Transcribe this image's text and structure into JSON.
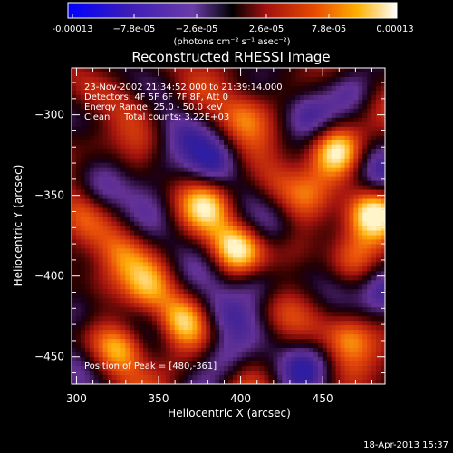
{
  "chart_data": {
    "type": "heatmap",
    "title": "Reconstructed RHESSI Image",
    "xlabel": "Heliocentric X (arcsec)",
    "ylabel": "Heliocentric Y (arcsec)",
    "xlim": [
      297,
      488
    ],
    "ylim": [
      -467,
      -271
    ],
    "x_ticks": [
      300,
      350,
      400,
      450
    ],
    "y_ticks": [
      -450,
      -400,
      -350,
      -300
    ],
    "colorbar": {
      "min": -0.00013,
      "max": 0.00013,
      "tick_labels": [
        "-0.00013",
        "−7.8e-05",
        "−2.6e-05",
        "2.6e-05",
        "7.8e-05",
        "0.00013"
      ],
      "unit_label": "(photons cm⁻² s⁻¹ asec⁻²)"
    },
    "annotations": {
      "time_range": "23-Nov-2002 21:34:52.000 to 21:39:14.000",
      "detectors": "Detectors: 4F 5F 6F 7F 8F, Att 0",
      "energy_range": "Energy Range: 25.0 - 50.0 keV",
      "algorithm": "Clean",
      "total_counts": "Total counts: 3.22E+03",
      "peak": "Position of Peak = [480,-361]"
    },
    "peak_position": [
      480,
      -361
    ],
    "blobs": [
      {
        "x": 480,
        "y": -361,
        "v": 1.0
      },
      {
        "x": 458,
        "y": -322,
        "v": 0.95
      },
      {
        "x": 397,
        "y": -382,
        "v": 0.85
      },
      {
        "x": 328,
        "y": -445,
        "v": 0.8
      },
      {
        "x": 380,
        "y": -356,
        "v": 0.6
      },
      {
        "x": 402,
        "y": -300,
        "v": 0.55
      },
      {
        "x": 310,
        "y": -322,
        "v": 0.45
      },
      {
        "x": 365,
        "y": -427,
        "v": 0.6
      },
      {
        "x": 466,
        "y": -438,
        "v": 0.7
      },
      {
        "x": 327,
        "y": -386,
        "v": 0.4
      },
      {
        "x": 343,
        "y": -408,
        "v": 0.4
      },
      {
        "x": 434,
        "y": -385,
        "v": 0.4
      },
      {
        "x": 338,
        "y": -296,
        "v": 0.4
      },
      {
        "x": 420,
        "y": -342,
        "v": 0.35
      },
      {
        "x": 313,
        "y": -405,
        "v": 0.45
      },
      {
        "x": 420,
        "y": -420,
        "v": 0.3
      },
      {
        "x": 360,
        "y": -460,
        "v": 0.3
      },
      {
        "x": 470,
        "y": -390,
        "v": 0.35
      },
      {
        "x": 440,
        "y": -350,
        "v": 0.3
      },
      {
        "x": 300,
        "y": -360,
        "v": 0.3
      },
      {
        "x": 350,
        "y": -330,
        "v": -0.5
      },
      {
        "x": 385,
        "y": -330,
        "v": -0.5
      },
      {
        "x": 440,
        "y": -300,
        "v": -0.55
      },
      {
        "x": 315,
        "y": -350,
        "v": -0.45
      },
      {
        "x": 470,
        "y": -285,
        "v": -0.45
      },
      {
        "x": 410,
        "y": -405,
        "v": -0.6
      },
      {
        "x": 300,
        "y": -455,
        "v": -0.5
      },
      {
        "x": 390,
        "y": -452,
        "v": -0.6
      },
      {
        "x": 440,
        "y": -455,
        "v": -0.55
      },
      {
        "x": 385,
        "y": -425,
        "v": -0.45
      },
      {
        "x": 490,
        "y": -410,
        "v": -0.5
      },
      {
        "x": 420,
        "y": -370,
        "v": -0.35
      },
      {
        "x": 485,
        "y": -335,
        "v": -0.4
      },
      {
        "x": 310,
        "y": -300,
        "v": -0.4
      },
      {
        "x": 365,
        "y": -310,
        "v": -0.35
      },
      {
        "x": 455,
        "y": -410,
        "v": -0.35
      },
      {
        "x": 300,
        "y": -425,
        "v": -0.35
      }
    ]
  },
  "footer": {
    "timestamp": "18-Apr-2013 15:37"
  }
}
